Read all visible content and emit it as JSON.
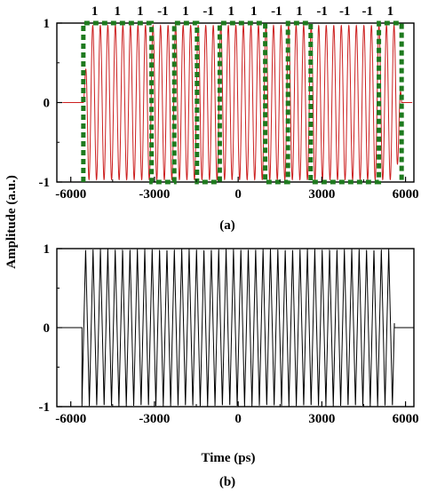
{
  "figure": {
    "ylabel": "Amplitude (a.u.)",
    "xlabel": "Time (ps)"
  },
  "chart_data": [
    {
      "type": "line",
      "panel_label": "(a)",
      "xlim": [
        -6500,
        6300
      ],
      "ylim": [
        -1,
        1
      ],
      "x_ticks": [
        -6000,
        -3000,
        0,
        3000,
        6000
      ],
      "x_tick_labels": [
        "-6000",
        "-3000",
        "0",
        "3000",
        "6000"
      ],
      "y_ticks": [
        -1,
        0,
        1
      ],
      "y_tick_labels": [
        "-1",
        "0",
        "1"
      ],
      "bit_sequence": [
        "1",
        "1",
        "1",
        "-1",
        "1",
        "-1",
        "1",
        "1",
        "-1",
        "1",
        "-1",
        "-1",
        "-1",
        "1"
      ],
      "bit_boundaries_ps": [
        -5550,
        -4735,
        -3920,
        -3105,
        -2290,
        -1475,
        -660,
        155,
        970,
        1785,
        2600,
        3415,
        4230,
        5045,
        5860
      ],
      "signal": {
        "start_ps": -5550,
        "end_ps": 5860,
        "carrier_period_ps": 270,
        "baseline_before": 0,
        "baseline_after": 0
      },
      "envelope_values": [
        1,
        1,
        1,
        -1,
        1,
        -1,
        1,
        1,
        -1,
        1,
        -1,
        -1,
        -1,
        1
      ],
      "colors": {
        "signal": "#cc1f1f",
        "envelope": "#1e7a1e",
        "axes": "#000000"
      }
    },
    {
      "type": "line",
      "panel_label": "(b)",
      "xlim": [
        -6500,
        6300
      ],
      "ylim": [
        -1,
        1
      ],
      "x_ticks": [
        -6000,
        -3000,
        0,
        3000,
        6000
      ],
      "x_tick_labels": [
        "-6000",
        "-3000",
        "0",
        "3000",
        "6000"
      ],
      "y_ticks": [
        -1,
        0,
        1
      ],
      "y_tick_labels": [
        "-1",
        "0",
        "1"
      ],
      "signal": {
        "start_ps": -5600,
        "end_ps": 5600,
        "carrier_period_ps": 265,
        "baseline_before": 0,
        "baseline_after": 0
      },
      "colors": {
        "signal": "#000000",
        "axes": "#000000"
      }
    }
  ]
}
